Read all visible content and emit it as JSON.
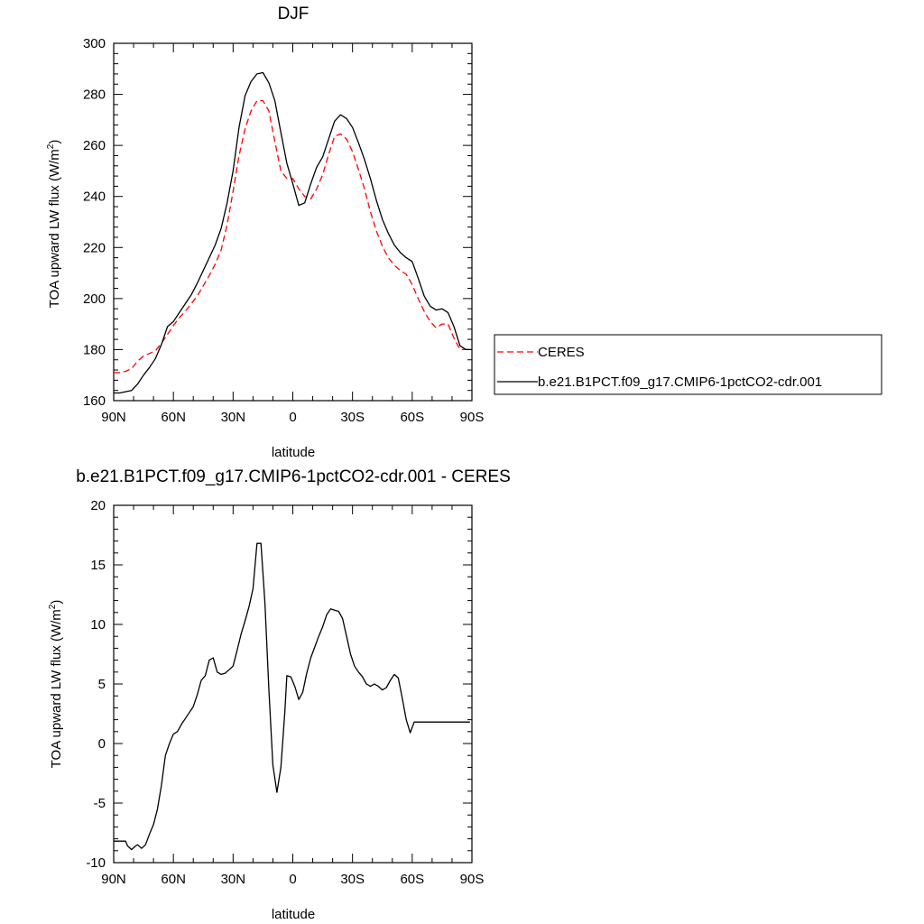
{
  "chart_data": [
    {
      "type": "line",
      "title": "DJF",
      "xlabel": "latitude",
      "ylabel": "TOA upward LW flux (W/m",
      "ylabel_sup": "2",
      "ylabel_close": ")",
      "xlim": [
        90,
        -90
      ],
      "ylim": [
        160,
        300
      ],
      "xticks": [
        90,
        60,
        30,
        0,
        -30,
        -60,
        -90
      ],
      "xtick_labels": [
        "90N",
        "60N",
        "30N",
        "0",
        "30S",
        "60S",
        "90S"
      ],
      "yticks": [
        160,
        180,
        200,
        220,
        240,
        260,
        280,
        300
      ],
      "ytick_labels": [
        "160",
        "180",
        "200",
        "220",
        "240",
        "260",
        "280",
        "300"
      ],
      "legend_position": "right",
      "series": [
        {
          "name": "CERES",
          "color": "#ff0000",
          "dash": "dashed",
          "x": [
            90,
            87,
            84,
            81,
            78,
            75,
            72,
            69,
            66,
            63,
            60,
            57,
            54,
            51,
            48,
            45,
            42,
            39,
            36,
            33,
            30,
            27,
            24,
            21,
            18,
            15,
            12,
            9,
            6,
            3,
            0,
            -3,
            -6,
            -9,
            -12,
            -15,
            -18,
            -21,
            -24,
            -27,
            -30,
            -33,
            -36,
            -39,
            -42,
            -45,
            -48,
            -51,
            -54,
            -57,
            -60,
            -63,
            -66,
            -69,
            -72,
            -75,
            -78,
            -81,
            -84,
            -87,
            -90
          ],
          "y": [
            171,
            171,
            171.5,
            172.5,
            175.5,
            177.5,
            178.5,
            179.5,
            182.5,
            186,
            189.5,
            192.5,
            195,
            198,
            201,
            205,
            209,
            213.5,
            219,
            229,
            242,
            256,
            266.5,
            273.5,
            277.5,
            277.5,
            273.5,
            261.5,
            250,
            247,
            247,
            243,
            240,
            239,
            243,
            248.5,
            256.5,
            263.5,
            264.5,
            262.5,
            257.5,
            250.5,
            243,
            234,
            226.5,
            220.5,
            216,
            213,
            211,
            209.5,
            205.5,
            200,
            195,
            191,
            188.5,
            190,
            190,
            184.5,
            180,
            180,
            180
          ]
        },
        {
          "name": "b.e21.B1PCT.f09_g17.CMIP6-1pctCO2-cdr.001",
          "color": "#000000",
          "dash": "solid",
          "x": [
            90,
            87,
            84,
            81,
            78,
            75,
            72,
            69,
            66,
            63,
            60,
            57,
            54,
            51,
            48,
            45,
            42,
            39,
            36,
            33,
            30,
            27,
            24,
            21,
            18,
            15,
            12,
            9,
            6,
            3,
            0,
            -3,
            -6,
            -9,
            -12,
            -15,
            -18,
            -21,
            -24,
            -27,
            -30,
            -33,
            -36,
            -39,
            -42,
            -45,
            -48,
            -51,
            -54,
            -57,
            -60,
            -63,
            -66,
            -69,
            -72,
            -75,
            -78,
            -81,
            -84,
            -87,
            -90
          ],
          "y": [
            163,
            163,
            163.5,
            164,
            166.5,
            170,
            173,
            176.5,
            182,
            189,
            191,
            194.5,
            198,
            201.5,
            206,
            211,
            216,
            221,
            227.5,
            237.5,
            250,
            267,
            279.5,
            285,
            288,
            288.5,
            284.5,
            277.5,
            265,
            253,
            245,
            236.5,
            237.5,
            245,
            251.5,
            255.5,
            262.5,
            269.5,
            272,
            270.5,
            267,
            261,
            254.5,
            247,
            238.5,
            231,
            225.5,
            221,
            218,
            216,
            214.5,
            208,
            201,
            197,
            195.5,
            196,
            194.5,
            189,
            181.5,
            180,
            180
          ]
        }
      ]
    },
    {
      "type": "line",
      "title": "b.e21.B1PCT.f09_g17.CMIP6-1pctCO2-cdr.001 - CERES",
      "xlabel": "latitude",
      "ylabel": "TOA upward LW flux (W/m",
      "ylabel_sup": "2",
      "ylabel_close": ")",
      "xlim": [
        90,
        -90
      ],
      "ylim": [
        -10,
        20
      ],
      "xticks": [
        90,
        60,
        30,
        0,
        -30,
        -60,
        -90
      ],
      "xtick_labels": [
        "90N",
        "60N",
        "30N",
        "0",
        "30S",
        "60S",
        "90S"
      ],
      "yticks": [
        -10,
        -5,
        0,
        5,
        10,
        15,
        20
      ],
      "ytick_labels": [
        "-10",
        "-5",
        "0",
        "5",
        "10",
        "15",
        "20"
      ],
      "series": [
        {
          "color": "#000000",
          "dash": "solid",
          "x": [
            90,
            87,
            86,
            84,
            83,
            81,
            79,
            78,
            76,
            74,
            72,
            70,
            68,
            66,
            64,
            62,
            60,
            58,
            56,
            54,
            52,
            50,
            48,
            46,
            44,
            42,
            40,
            38,
            36,
            34,
            32,
            30,
            28,
            26,
            24,
            22,
            20,
            18,
            16,
            14,
            12,
            10,
            8,
            6,
            4,
            3,
            1,
            -1,
            -3,
            -5,
            -7,
            -9,
            -11,
            -13,
            -15,
            -17,
            -19,
            -21,
            -23,
            -25,
            -27,
            -29,
            -31,
            -33,
            -35,
            -37,
            -39,
            -41,
            -43,
            -45,
            -47,
            -49,
            -51,
            -53,
            -55,
            -57,
            -59,
            -61,
            -63,
            -65,
            -67,
            -69,
            -71,
            -73,
            -75,
            -77,
            -79,
            -81,
            -83,
            -85,
            -87,
            -89
          ],
          "y": [
            -8.2,
            -8.2,
            -8.2,
            -8.2,
            -8.6,
            -8.9,
            -8.6,
            -8.5,
            -8.8,
            -8.5,
            -7.6,
            -6.8,
            -5.5,
            -3.5,
            -1.0,
            0.0,
            0.8,
            1.0,
            1.6,
            2.1,
            2.6,
            3.1,
            4.1,
            5.3,
            5.7,
            7.0,
            7.2,
            6.0,
            5.8,
            5.9,
            6.2,
            6.5,
            7.8,
            9.2,
            10.3,
            11.5,
            13.0,
            16.8,
            16.8,
            11.8,
            4.5,
            -1.8,
            -4.1,
            -2.0,
            2.7,
            5.7,
            5.6,
            4.8,
            3.7,
            4.3,
            5.9,
            7.2,
            8.1,
            9.0,
            9.8,
            10.8,
            11.3,
            11.2,
            11.1,
            10.5,
            9.0,
            7.5,
            6.5,
            6.0,
            5.6,
            5.0,
            4.8,
            5.0,
            4.8,
            4.5,
            4.7,
            5.3,
            5.8,
            5.5,
            3.8,
            2.0,
            0.9,
            1.8,
            1.8,
            1.8,
            1.8,
            1.8,
            1.8,
            1.8,
            1.8,
            1.8,
            1.8,
            1.8,
            1.8,
            1.8,
            1.8,
            1.8
          ]
        }
      ]
    }
  ]
}
